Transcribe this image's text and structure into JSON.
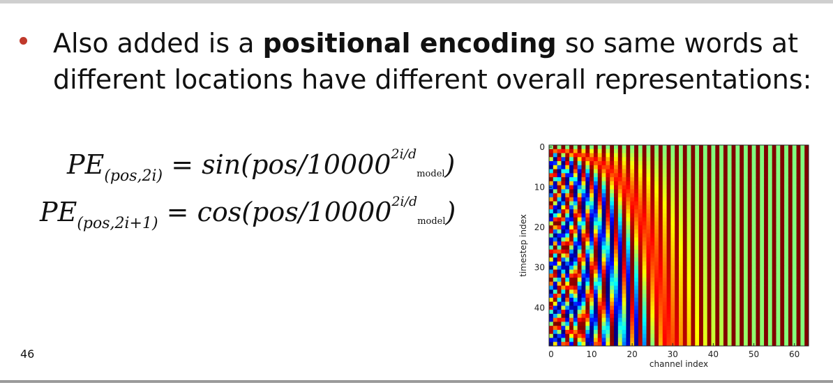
{
  "slide": {
    "bullet_pre": "Also added is a ",
    "bullet_bold": "positional encoding",
    "bullet_post": " so same words at different locations have different overall representations:",
    "page_number": "46"
  },
  "formulas": {
    "f1_lhs": "PE",
    "f1_sub": "(pos,2i)",
    "f1_eq": " = ",
    "f1_fn": "sin",
    "f1_open": "(pos/10000",
    "f1_sup": "2i/d",
    "f1_supsub": "model",
    "f1_close": ")",
    "f2_lhs": "PE",
    "f2_sub": "(pos,2i+1)",
    "f2_eq": " = ",
    "f2_fn": "cos",
    "f2_open": "(pos/10000",
    "f2_sup": "2i/d",
    "f2_supsub": "model",
    "f2_close": ")"
  },
  "chart_data": {
    "type": "heatmap",
    "title": "",
    "xlabel": "channel index",
    "ylabel": "timestep index",
    "x_range": [
      0,
      64
    ],
    "y_range": [
      0,
      50
    ],
    "y_inverted": true,
    "x_ticks": [
      0,
      10,
      20,
      30,
      40,
      50,
      60
    ],
    "y_ticks": [
      0,
      10,
      20,
      30,
      40
    ],
    "rows": 50,
    "cols": 64,
    "d_model": 64,
    "function": "PE(pos,2i)=sin(pos/10000^(2i/d_model)); PE(pos,2i+1)=cos(pos/10000^(2i/d_model))",
    "value_range": [
      -1,
      1
    ],
    "colormap": "jet",
    "grid": false
  }
}
